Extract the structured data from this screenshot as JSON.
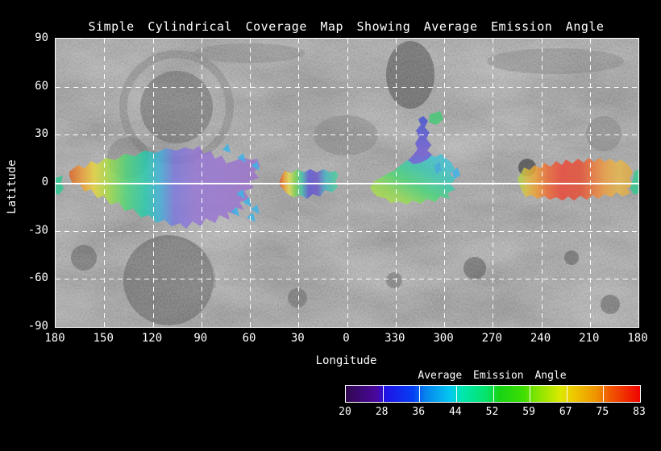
{
  "title": "Simple Cylindrical Coverage Map Showing Average Emission Angle",
  "chart_data": {
    "type": "heatmap",
    "projection": "simple cylindrical",
    "title": "Simple Cylindrical Coverage Map Showing Average Emission Angle",
    "xlabel": "Longitude",
    "ylabel": "Latitude",
    "x_ticks": [
      180,
      150,
      120,
      90,
      60,
      30,
      0,
      330,
      300,
      270,
      240,
      210,
      180
    ],
    "y_ticks": [
      90,
      60,
      30,
      0,
      -30,
      -60,
      -90
    ],
    "grid": true,
    "grid_style": "white dashed every 30 degrees, solid white equator line",
    "background": "grayscale planetary surface mosaic",
    "colorbar": {
      "label": "Average Emission Angle",
      "ticks": [
        20,
        28,
        36,
        44,
        52,
        59,
        67,
        75,
        83
      ],
      "min": 20,
      "max": 83,
      "palette": [
        "#30084e",
        "#2012e6",
        "#0782ee",
        "#00e6ae",
        "#16d316",
        "#7ee400",
        "#eecb00",
        "#f05a00",
        "#f00300"
      ]
    },
    "coverage_regions": [
      {
        "name": "western-region",
        "lon_range": [
          172,
          50
        ],
        "lat_range": [
          21,
          -28
        ],
        "emission_angle_range": [
          78,
          20
        ],
        "description": "Large patch: orange/yellow (high angle ~70-78) at west tip grading east through green, teal and cyan into a broad purple area (low angle ~20-28); scattered cyan fragments along its eastern edge."
      },
      {
        "name": "central-west-region",
        "lon_range": [
          40,
          6
        ],
        "lat_range": [
          8,
          -10
        ],
        "emission_angle_range": [
          78,
          24
        ],
        "description": "Small patch: red-orange west edge, thin yellow band, green, blue-purple core, teal-green east edge."
      },
      {
        "name": "central-east-region",
        "lon_range": [
          347,
          300
        ],
        "lat_range": [
          18,
          -10
        ],
        "emission_angle_range": [
          58,
          30
        ],
        "description": "Patch with yellow-green southwest grading to cyan northeast; a blue-purple tail extends north to lat ~40 with small green/cyan fragments."
      },
      {
        "name": "eastern-region",
        "lon_range": [
          247,
          190
        ],
        "lat_range": [
          12,
          -9
        ],
        "emission_angle_range": [
          83,
          55
        ],
        "description": "Elongated patch along equator: yellow-green west tip, red center (highest angles), orange-yellow east end."
      },
      {
        "name": "antimeridian-edge-patches",
        "lon_range": [
          180,
          176
        ],
        "lat_range": [
          5,
          -6
        ],
        "emission_angle_range": [
          48,
          44
        ],
        "description": "Small teal-green patch touching the 180-degree edge on both the left and right map borders."
      }
    ]
  },
  "colors": {
    "background": "#000000",
    "frame": "#ffffff",
    "grid": "#ffffff",
    "text": "#ffffff",
    "terrain_base": "#474747"
  }
}
